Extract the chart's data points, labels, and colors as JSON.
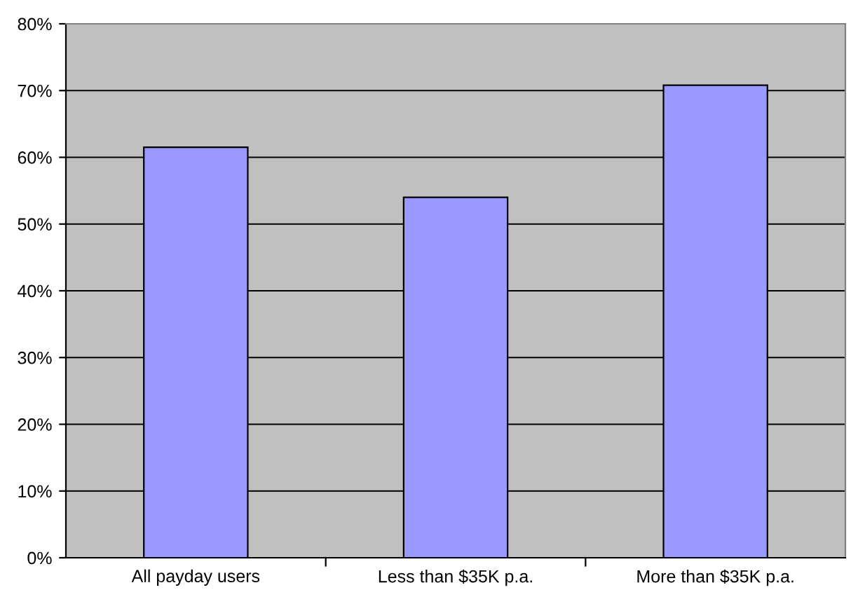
{
  "chart_data": {
    "type": "bar",
    "categories": [
      "All payday users",
      "Less than $35K p.a.",
      "More than $35K p.a."
    ],
    "values": [
      61.5,
      54,
      70.8
    ],
    "color": "#9999ff",
    "ylim": [
      0,
      80
    ],
    "yticks": [
      {
        "value": 0,
        "label": "0%"
      },
      {
        "value": 10,
        "label": "10%"
      },
      {
        "value": 20,
        "label": "20%"
      },
      {
        "value": 30,
        "label": "30%"
      },
      {
        "value": 40,
        "label": "40%"
      },
      {
        "value": 50,
        "label": "50%"
      },
      {
        "value": 60,
        "label": "60%"
      },
      {
        "value": 70,
        "label": "70%"
      },
      {
        "value": 80,
        "label": "80%"
      }
    ],
    "grid": "y"
  }
}
